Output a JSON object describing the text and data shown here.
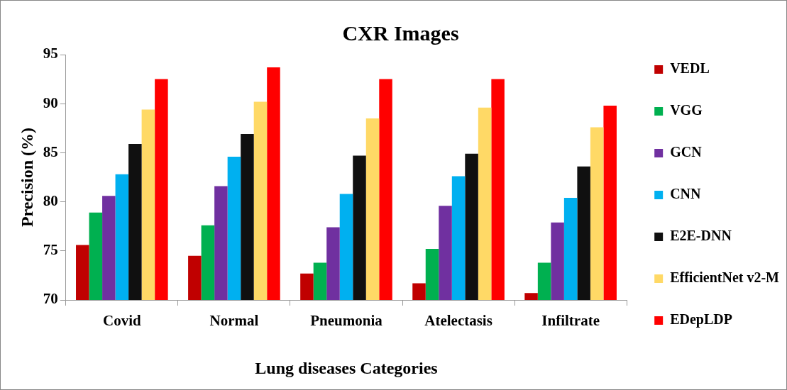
{
  "chart_data": {
    "type": "bar",
    "title": "CXR Images",
    "xlabel": "Lung diseases Categories",
    "ylabel": "Precision (%)",
    "categories": [
      "Covid",
      "Normal",
      "Pneumonia",
      "Atelectasis",
      "Infiltrate"
    ],
    "series": [
      {
        "name": "VEDL",
        "color": "#c00000",
        "values": [
          75.6,
          74.5,
          72.7,
          71.7,
          70.7
        ]
      },
      {
        "name": "VGG",
        "color": "#00b050",
        "values": [
          78.9,
          77.6,
          73.8,
          75.2,
          73.8
        ]
      },
      {
        "name": "GCN",
        "color": "#7030a0",
        "values": [
          80.6,
          81.6,
          77.4,
          79.6,
          77.9
        ]
      },
      {
        "name": "CNN",
        "color": "#00b0f0",
        "values": [
          82.8,
          84.6,
          80.8,
          82.6,
          80.4
        ]
      },
      {
        "name": "E2E-DNN",
        "color": "#101010",
        "values": [
          85.9,
          86.9,
          84.7,
          84.9,
          83.6
        ]
      },
      {
        "name": "EfficientNet v2-M",
        "color": "#ffd966",
        "values": [
          89.4,
          90.2,
          88.5,
          89.6,
          87.6
        ]
      },
      {
        "name": "EDepLDP",
        "color": "#ff0000",
        "values": [
          92.5,
          93.7,
          92.5,
          92.5,
          89.8
        ]
      }
    ],
    "ylim": [
      70,
      95
    ],
    "yticks": [
      70,
      75,
      80,
      85,
      90,
      95
    ],
    "grid": false,
    "legend": "right"
  }
}
